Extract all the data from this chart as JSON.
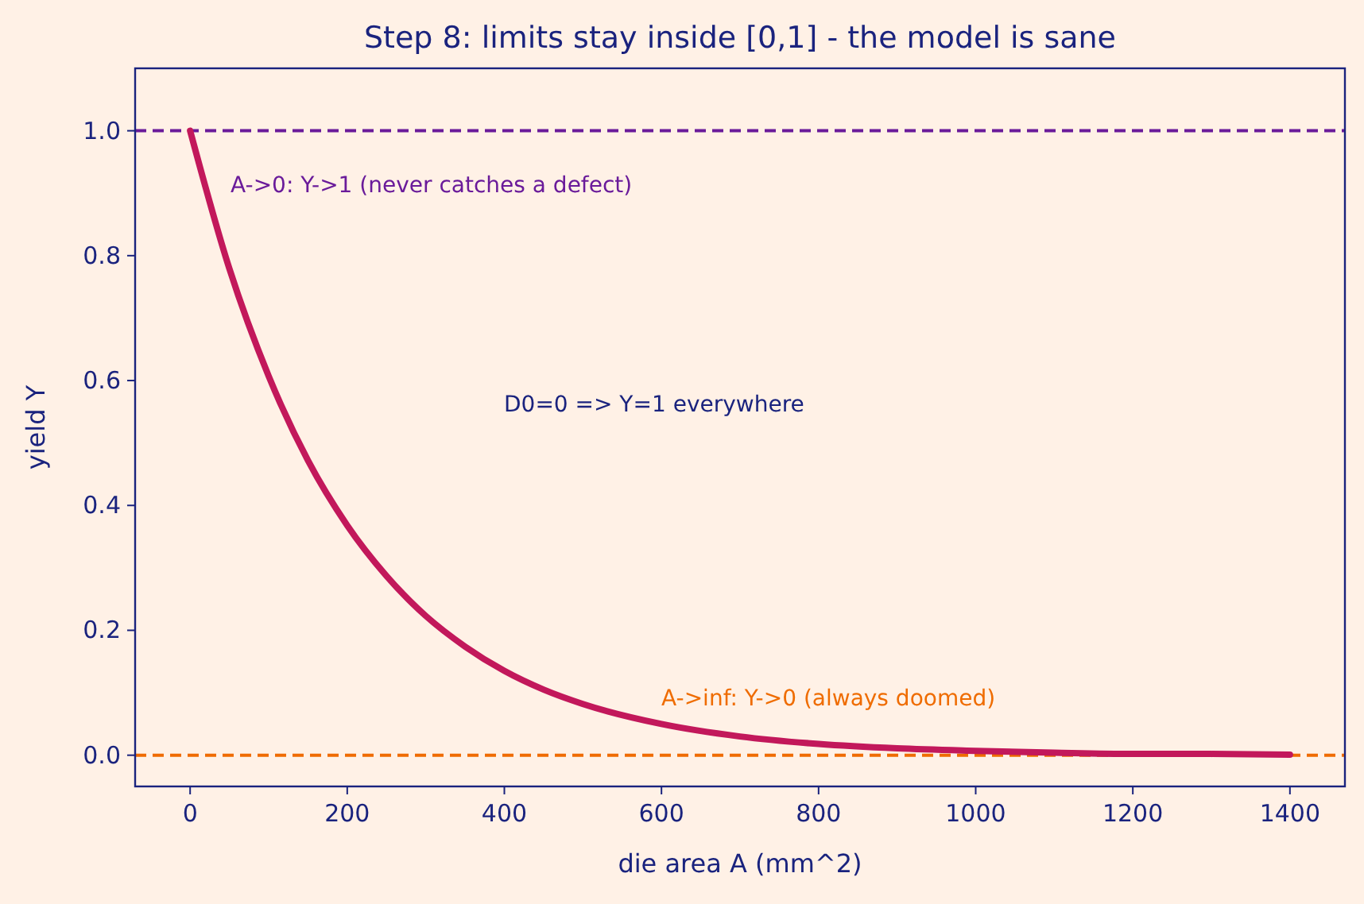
{
  "chart_data": {
    "type": "line",
    "title": "Step 8: limits stay inside [0,1] - the model is sane",
    "xlabel": "die area A (mm^2)",
    "ylabel": "yield Y",
    "x": [
      0,
      50,
      100,
      150,
      200,
      250,
      300,
      350,
      400,
      450,
      500,
      600,
      700,
      800,
      900,
      1000,
      1100,
      1200,
      1300,
      1400
    ],
    "series": [
      {
        "color": "#c2185b",
        "values": [
          1,
          0.779,
          0.607,
          0.472,
          0.368,
          0.287,
          0.223,
          0.174,
          0.135,
          0.105,
          0.082,
          0.05,
          0.03,
          0.018,
          0.011,
          0.007,
          0.004,
          0.002,
          0.002,
          0.001
        ]
      }
    ],
    "xlim": [
      -70,
      1470
    ],
    "ylim": [
      -0.05,
      1.1
    ],
    "xticks": [
      0,
      200,
      400,
      600,
      800,
      1000,
      1200,
      1400
    ],
    "yticks": [
      {
        "value": 0,
        "label": "0.0"
      },
      {
        "value": 0.2,
        "label": "0.2"
      },
      {
        "value": 0.4,
        "label": "0.4"
      },
      {
        "value": 0.6,
        "label": "0.6"
      },
      {
        "value": 0.8,
        "label": "0.8"
      },
      {
        "value": 1,
        "label": "1.0"
      }
    ],
    "ref_lines": [
      {
        "axis": "y",
        "value": 1,
        "color": "#6a1b9a",
        "line_style": "dashed"
      },
      {
        "axis": "y",
        "value": 0,
        "color": "#ef6c00",
        "line_style": "dashed"
      }
    ],
    "annotations": [
      "A->0: Y->1 (never catches a defect)",
      "D0=0 => Y=1 everywhere",
      "A->inf: Y->0 (always doomed)"
    ],
    "grid": false,
    "marker": "none",
    "line_style": "solid"
  }
}
